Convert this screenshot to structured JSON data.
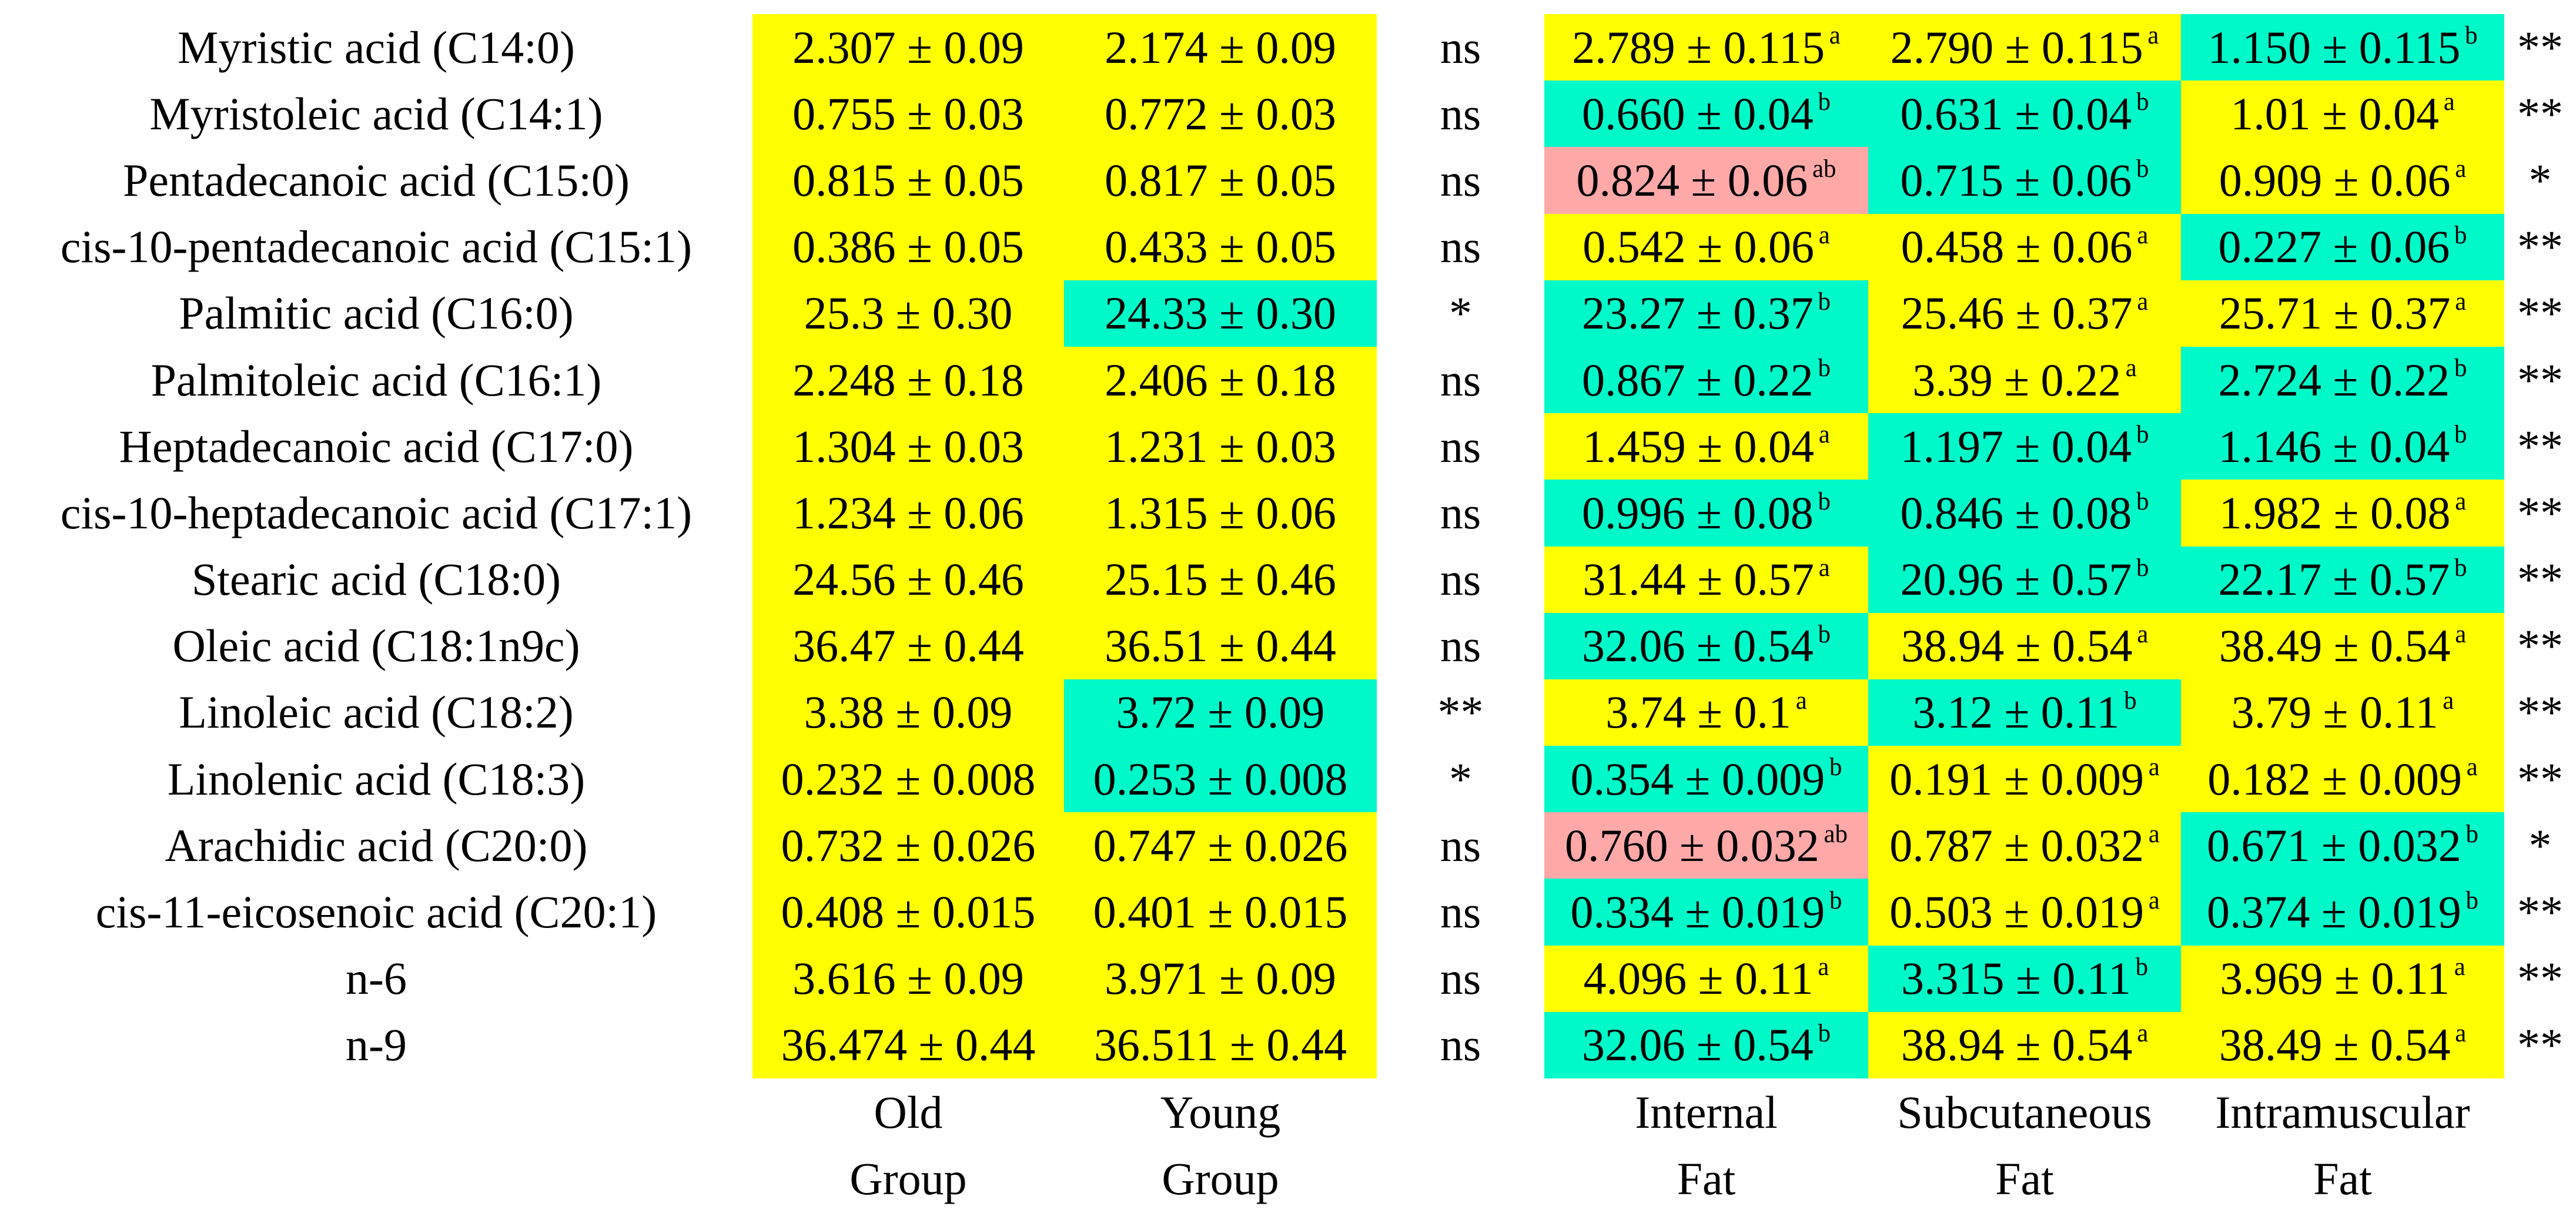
{
  "colors": {
    "yellow": "#FFFF00",
    "cyan": "#00F9C8",
    "pink": "#FFA8A8",
    "white": "#FFFFFF",
    "text": "#000000"
  },
  "table": {
    "columns": [
      "fatty-acid-name",
      "old-group-value",
      "young-group-value",
      "age-significance",
      "internal-fat-value",
      "subcutaneous-fat-value",
      "intramuscular-fat-value",
      "depot-significance"
    ],
    "rows": [
      {
        "name": "Myristic acid (C14:0)",
        "old": {
          "v": "2.307 ± 0.09",
          "bg": "yellow"
        },
        "young": {
          "v": "2.174 ± 0.09",
          "bg": "yellow"
        },
        "sig_age": "ns",
        "internal": {
          "v": "2.789 ± 0.115",
          "sup": "a",
          "bg": "yellow"
        },
        "subcutaneous": {
          "v": "2.790 ± 0.115",
          "sup": "a",
          "bg": "yellow"
        },
        "intramuscular": {
          "v": "1.150 ± 0.115",
          "sup": "b",
          "bg": "cyan"
        },
        "sig_depot": "**"
      },
      {
        "name": "Myristoleic acid (C14:1)",
        "old": {
          "v": "0.755 ± 0.03",
          "bg": "yellow"
        },
        "young": {
          "v": "0.772 ± 0.03",
          "bg": "yellow"
        },
        "sig_age": "ns",
        "internal": {
          "v": "0.660 ± 0.04",
          "sup": "b",
          "bg": "cyan"
        },
        "subcutaneous": {
          "v": "0.631 ± 0.04",
          "sup": "b",
          "bg": "cyan"
        },
        "intramuscular": {
          "v": "1.01 ± 0.04",
          "sup": "a",
          "bg": "yellow"
        },
        "sig_depot": "**"
      },
      {
        "name": "Pentadecanoic acid (C15:0)",
        "old": {
          "v": "0.815 ± 0.05",
          "bg": "yellow"
        },
        "young": {
          "v": "0.817 ± 0.05",
          "bg": "yellow"
        },
        "sig_age": "ns",
        "internal": {
          "v": "0.824 ± 0.06",
          "sup": "ab",
          "bg": "pink"
        },
        "subcutaneous": {
          "v": "0.715 ± 0.06",
          "sup": "b",
          "bg": "cyan"
        },
        "intramuscular": {
          "v": "0.909 ± 0.06",
          "sup": "a",
          "bg": "yellow"
        },
        "sig_depot": "*"
      },
      {
        "name": "cis-10-pentadecanoic acid (C15:1)",
        "old": {
          "v": "0.386 ± 0.05",
          "bg": "yellow"
        },
        "young": {
          "v": "0.433 ± 0.05",
          "bg": "yellow"
        },
        "sig_age": "ns",
        "internal": {
          "v": "0.542 ± 0.06",
          "sup": "a",
          "bg": "yellow"
        },
        "subcutaneous": {
          "v": "0.458 ± 0.06",
          "sup": "a",
          "bg": "yellow"
        },
        "intramuscular": {
          "v": "0.227 ± 0.06",
          "sup": "b",
          "bg": "cyan"
        },
        "sig_depot": "**"
      },
      {
        "name": "Palmitic acid (C16:0)",
        "old": {
          "v": "25.3 ± 0.30",
          "bg": "yellow"
        },
        "young": {
          "v": "24.33 ± 0.30",
          "bg": "cyan"
        },
        "sig_age": "*",
        "internal": {
          "v": "23.27 ± 0.37",
          "sup": "b",
          "bg": "cyan"
        },
        "subcutaneous": {
          "v": "25.46 ± 0.37",
          "sup": "a",
          "bg": "yellow"
        },
        "intramuscular": {
          "v": "25.71 ± 0.37",
          "sup": "a",
          "bg": "yellow"
        },
        "sig_depot": "**"
      },
      {
        "name": "Palmitoleic acid (C16:1)",
        "old": {
          "v": "2.248 ± 0.18",
          "bg": "yellow"
        },
        "young": {
          "v": "2.406 ± 0.18",
          "bg": "yellow"
        },
        "sig_age": "ns",
        "internal": {
          "v": "0.867 ± 0.22",
          "sup": "b",
          "bg": "cyan"
        },
        "subcutaneous": {
          "v": "3.39 ± 0.22",
          "sup": "a",
          "bg": "yellow"
        },
        "intramuscular": {
          "v": "2.724 ± 0.22",
          "sup": "b",
          "bg": "cyan"
        },
        "sig_depot": "**"
      },
      {
        "name": "Heptadecanoic acid (C17:0)",
        "old": {
          "v": "1.304 ± 0.03",
          "bg": "yellow"
        },
        "young": {
          "v": "1.231 ± 0.03",
          "bg": "yellow"
        },
        "sig_age": "ns",
        "internal": {
          "v": "1.459 ± 0.04",
          "sup": "a",
          "bg": "yellow"
        },
        "subcutaneous": {
          "v": "1.197 ± 0.04",
          "sup": "b",
          "bg": "cyan"
        },
        "intramuscular": {
          "v": "1.146 ± 0.04",
          "sup": "b",
          "bg": "cyan"
        },
        "sig_depot": "**"
      },
      {
        "name": "cis-10-heptadecanoic acid (C17:1)",
        "old": {
          "v": "1.234 ± 0.06",
          "bg": "yellow"
        },
        "young": {
          "v": "1.315 ± 0.06",
          "bg": "yellow"
        },
        "sig_age": "ns",
        "internal": {
          "v": "0.996 ± 0.08",
          "sup": "b",
          "bg": "cyan"
        },
        "subcutaneous": {
          "v": "0.846 ± 0.08",
          "sup": "b",
          "bg": "cyan"
        },
        "intramuscular": {
          "v": "1.982 ± 0.08",
          "sup": "a",
          "bg": "yellow"
        },
        "sig_depot": "**"
      },
      {
        "name": "Stearic acid (C18:0)",
        "old": {
          "v": "24.56 ± 0.46",
          "bg": "yellow"
        },
        "young": {
          "v": "25.15 ± 0.46",
          "bg": "yellow"
        },
        "sig_age": "ns",
        "internal": {
          "v": "31.44 ± 0.57",
          "sup": "a",
          "bg": "yellow"
        },
        "subcutaneous": {
          "v": "20.96 ± 0.57",
          "sup": "b",
          "bg": "cyan"
        },
        "intramuscular": {
          "v": "22.17 ± 0.57",
          "sup": "b",
          "bg": "cyan"
        },
        "sig_depot": "**"
      },
      {
        "name": "Oleic acid (C18:1n9c)",
        "old": {
          "v": "36.47 ± 0.44",
          "bg": "yellow"
        },
        "young": {
          "v": "36.51 ± 0.44",
          "bg": "yellow"
        },
        "sig_age": "ns",
        "internal": {
          "v": "32.06 ± 0.54",
          "sup": "b",
          "bg": "cyan"
        },
        "subcutaneous": {
          "v": "38.94 ± 0.54",
          "sup": "a",
          "bg": "yellow"
        },
        "intramuscular": {
          "v": "38.49 ± 0.54",
          "sup": "a",
          "bg": "yellow"
        },
        "sig_depot": "**"
      },
      {
        "name": "Linoleic acid (C18:2)",
        "old": {
          "v": "3.38 ± 0.09",
          "bg": "yellow"
        },
        "young": {
          "v": "3.72 ± 0.09",
          "bg": "cyan"
        },
        "sig_age": "**",
        "internal": {
          "v": "3.74 ± 0.1",
          "sup": "a",
          "bg": "yellow"
        },
        "subcutaneous": {
          "v": "3.12 ± 0.11",
          "sup": "b",
          "bg": "cyan"
        },
        "intramuscular": {
          "v": "3.79 ± 0.11",
          "sup": "a",
          "bg": "yellow"
        },
        "sig_depot": "**"
      },
      {
        "name": "Linolenic acid (C18:3)",
        "old": {
          "v": "0.232 ± 0.008",
          "bg": "yellow"
        },
        "young": {
          "v": "0.253 ± 0.008",
          "bg": "cyan"
        },
        "sig_age": "*",
        "internal": {
          "v": "0.354 ± 0.009",
          "sup": "b",
          "bg": "cyan"
        },
        "subcutaneous": {
          "v": "0.191 ± 0.009",
          "sup": "a",
          "bg": "yellow"
        },
        "intramuscular": {
          "v": "0.182 ± 0.009",
          "sup": "a",
          "bg": "yellow"
        },
        "sig_depot": "**"
      },
      {
        "name": "Arachidic acid (C20:0)",
        "old": {
          "v": "0.732 ± 0.026",
          "bg": "yellow"
        },
        "young": {
          "v": "0.747 ± 0.026",
          "bg": "yellow"
        },
        "sig_age": "ns",
        "internal": {
          "v": "0.760 ± 0.032",
          "sup": "ab",
          "bg": "pink"
        },
        "subcutaneous": {
          "v": "0.787 ± 0.032",
          "sup": "a",
          "bg": "yellow"
        },
        "intramuscular": {
          "v": "0.671 ± 0.032",
          "sup": "b",
          "bg": "cyan"
        },
        "sig_depot": "*"
      },
      {
        "name": "cis-11-eicosenoic acid (C20:1)",
        "old": {
          "v": "0.408 ± 0.015",
          "bg": "yellow"
        },
        "young": {
          "v": "0.401 ± 0.015",
          "bg": "yellow"
        },
        "sig_age": "ns",
        "internal": {
          "v": "0.334 ± 0.019",
          "sup": "b",
          "bg": "cyan"
        },
        "subcutaneous": {
          "v": "0.503 ± 0.019",
          "sup": "a",
          "bg": "yellow"
        },
        "intramuscular": {
          "v": "0.374 ± 0.019",
          "sup": "b",
          "bg": "cyan"
        },
        "sig_depot": "**"
      },
      {
        "name": "n-6",
        "old": {
          "v": "3.616 ± 0.09",
          "bg": "yellow"
        },
        "young": {
          "v": "3.971 ± 0.09",
          "bg": "yellow"
        },
        "sig_age": "ns",
        "internal": {
          "v": "4.096 ± 0.11",
          "sup": "a",
          "bg": "yellow"
        },
        "subcutaneous": {
          "v": "3.315 ± 0.11",
          "sup": "b",
          "bg": "cyan"
        },
        "intramuscular": {
          "v": "3.969 ± 0.11",
          "sup": "a",
          "bg": "yellow"
        },
        "sig_depot": "**"
      },
      {
        "name": "n-9",
        "old": {
          "v": "36.474 ± 0.44",
          "bg": "yellow"
        },
        "young": {
          "v": "36.511 ± 0.44",
          "bg": "yellow"
        },
        "sig_age": "ns",
        "internal": {
          "v": "32.06 ± 0.54",
          "sup": "b",
          "bg": "cyan"
        },
        "subcutaneous": {
          "v": "38.94 ± 0.54",
          "sup": "a",
          "bg": "yellow"
        },
        "intramuscular": {
          "v": "38.49 ± 0.54",
          "sup": "a",
          "bg": "yellow"
        },
        "sig_depot": "**"
      }
    ]
  },
  "footers": {
    "old": [
      "Old",
      "Group"
    ],
    "young": [
      "Young",
      "Group"
    ],
    "internal": [
      "Internal",
      "Fat"
    ],
    "subcutaneous": [
      "Subcutaneous",
      "Fat"
    ],
    "intramuscular": [
      "Intramuscular",
      "Fat"
    ]
  }
}
